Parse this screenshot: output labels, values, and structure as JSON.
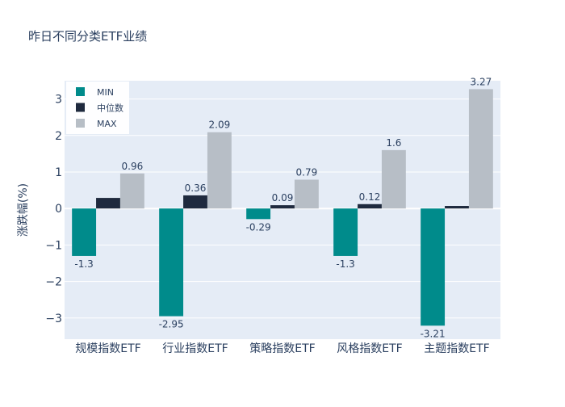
{
  "chart_data": {
    "type": "bar",
    "title": "昨日不同分类ETF业绩",
    "xlabel": "",
    "ylabel": "涨跌幅(%)",
    "categories": [
      "规模指数ETF",
      "行业指数ETF",
      "策略指数ETF",
      "风格指数ETF",
      "主题指数ETF"
    ],
    "series": [
      {
        "name": "MIN",
        "color": "#008B8B",
        "values": [
          -1.3,
          -2.95,
          -0.29,
          -1.3,
          -3.21
        ],
        "labels": [
          "-1.3",
          "-2.95",
          "-0.29",
          "-1.3",
          "-3.21"
        ]
      },
      {
        "name": "中位数",
        "color": "#1F2A3E",
        "values": [
          0.29,
          0.36,
          0.09,
          0.12,
          0.07
        ],
        "labels": [
          "",
          "0.36",
          "0.09",
          "0.12",
          ""
        ]
      },
      {
        "name": "MAX",
        "color": "#B7BEC6",
        "values": [
          0.96,
          2.09,
          0.79,
          1.6,
          3.27
        ],
        "labels": [
          "0.96",
          "2.09",
          "0.79",
          "1.6",
          "3.27"
        ]
      }
    ],
    "ylim": [
      -3.58,
      3.5
    ],
    "yticks": [
      -3,
      -2,
      -1,
      0,
      1,
      2,
      3
    ],
    "ytick_labels": [
      "−3",
      "−2",
      "−1",
      "0",
      "1",
      "2",
      "3"
    ],
    "grid": true,
    "legend_position": "top-left",
    "plot_background": "#E5ECF6",
    "text_color": "#2A3F5F"
  }
}
